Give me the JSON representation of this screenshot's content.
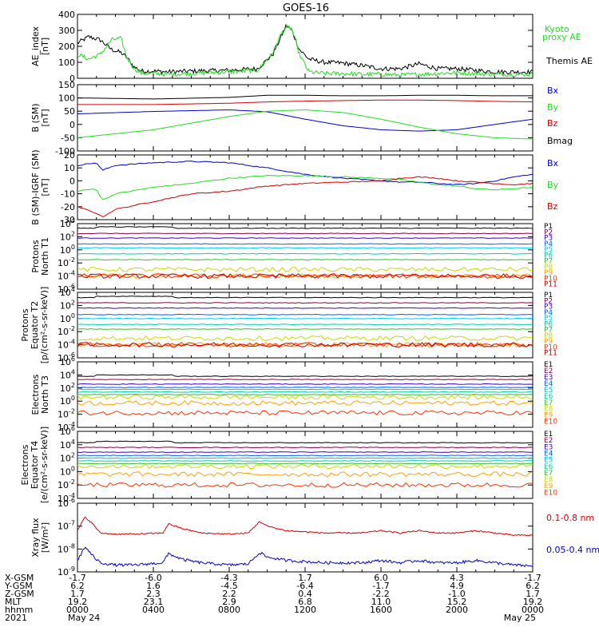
{
  "title": "GOES-16",
  "colors": {
    "black": "#000000",
    "red": "#d00000",
    "green": "#22dd22",
    "blue": "#0000cc",
    "chan": [
      "#000000",
      "#8b004b",
      "#3a00c8",
      "#0060ff",
      "#00c8ff",
      "#00d0a0",
      "#30c030",
      "#c8d800",
      "#ffa000",
      "#ff3000",
      "#c80000"
    ],
    "echan": [
      "#000000",
      "#8b004b",
      "#3a00c8",
      "#0060ff",
      "#00b8f0",
      "#00d0a0",
      "#30c030",
      "#c8d800",
      "#ffa000",
      "#ff3000",
      "#c00000"
    ]
  },
  "chart_data": [
    {
      "type": "line",
      "name": "ae",
      "ylabel": [
        "AE_index",
        "[nT]"
      ],
      "ylim": [
        0,
        400
      ],
      "yticks": [
        "0",
        "100",
        "200",
        "300",
        "400"
      ],
      "x_hours": [
        0,
        24
      ],
      "series": [
        {
          "name": "Themis AE",
          "color": "#000000",
          "x": [
            0,
            0.6,
            1.2,
            1.8,
            2.3,
            2.6,
            3.0,
            3.4,
            4.0,
            4.8,
            6,
            8,
            9.5,
            10.3,
            10.7,
            11.0,
            11.3,
            11.7,
            12.2,
            13,
            14,
            15,
            16,
            17,
            18,
            19,
            20,
            21,
            22,
            23,
            24
          ],
          "y": [
            220,
            260,
            240,
            180,
            160,
            130,
            70,
            45,
            45,
            40,
            45,
            50,
            60,
            150,
            250,
            330,
            300,
            180,
            120,
            100,
            95,
            80,
            60,
            60,
            90,
            60,
            60,
            50,
            40,
            40,
            40
          ]
        },
        {
          "name": "Kyoto proxy AE",
          "color": "#22dd22",
          "x": [
            0,
            0.6,
            1.2,
            1.8,
            2.3,
            2.6,
            3.0,
            3.4,
            4.0,
            4.8,
            6,
            8,
            9.5,
            10.3,
            10.7,
            11.0,
            11.3,
            11.7,
            12.2,
            13,
            14,
            15,
            16,
            17,
            18,
            19,
            20,
            21,
            22,
            23,
            24
          ],
          "y": [
            150,
            120,
            150,
            240,
            250,
            130,
            60,
            30,
            30,
            25,
            30,
            40,
            50,
            160,
            270,
            320,
            310,
            150,
            40,
            30,
            30,
            25,
            25,
            20,
            25,
            30,
            35,
            30,
            25,
            25,
            25
          ]
        }
      ],
      "legend": [
        "Kyoto",
        "proxy AE",
        "Themis AE"
      ]
    },
    {
      "type": "line",
      "name": "bsm",
      "ylabel": [
        "B (SM)",
        "[nT]"
      ],
      "ylim": [
        -100,
        150
      ],
      "yticks": [
        "-100",
        "-50",
        "0",
        "50",
        "100",
        "150"
      ],
      "series": [
        {
          "name": "Bx",
          "color": "#0000cc",
          "x": [
            0,
            4,
            8,
            10,
            12,
            14,
            16,
            18,
            20,
            22,
            24
          ],
          "y": [
            40,
            49,
            55,
            48,
            20,
            -5,
            -20,
            -25,
            -20,
            0,
            20
          ]
        },
        {
          "name": "By",
          "color": "#22dd22",
          "x": [
            0,
            4,
            8,
            10,
            12,
            14,
            16,
            18,
            20,
            22,
            24
          ],
          "y": [
            -50,
            -20,
            30,
            50,
            55,
            45,
            20,
            -10,
            -35,
            -50,
            -55
          ]
        },
        {
          "name": "Bz",
          "color": "#d00000",
          "x": [
            0,
            4,
            8,
            10,
            12,
            14,
            16,
            18,
            20,
            22,
            24
          ],
          "y": [
            75,
            75,
            80,
            85,
            88,
            90,
            92,
            92,
            90,
            87,
            85
          ]
        },
        {
          "name": "Bmag",
          "color": "#000000",
          "x": [
            0,
            4,
            8,
            10,
            12,
            14,
            16,
            18,
            20,
            22,
            24
          ],
          "y": [
            100,
            96,
            102,
            110,
            110,
            108,
            108,
            110,
            110,
            108,
            108
          ]
        }
      ]
    },
    {
      "type": "line",
      "name": "bigrf",
      "ylabel": [
        "B (SM)-IGRF (SM)",
        "[nT]"
      ],
      "ylim": [
        -30,
        20
      ],
      "yticks": [
        "-30",
        "-20",
        "-10",
        "0",
        "10",
        "20"
      ],
      "series": [
        {
          "name": "Bx",
          "color": "#0000cc",
          "x": [
            0,
            1,
            1.3,
            2,
            4,
            6,
            8,
            10,
            12,
            14,
            16,
            17,
            18,
            19,
            20,
            21,
            22,
            23,
            24
          ],
          "y": [
            12,
            14,
            8,
            12,
            14,
            15,
            14,
            10,
            5,
            2,
            0,
            -1,
            -1,
            -2,
            -3,
            -2,
            0,
            3,
            5
          ]
        },
        {
          "name": "By",
          "color": "#22dd22",
          "x": [
            0,
            1,
            1.3,
            2,
            4,
            6,
            8,
            10,
            12,
            14,
            16,
            17,
            18,
            19,
            20,
            21,
            22,
            23,
            24
          ],
          "y": [
            -8,
            -6,
            -15,
            -10,
            -5,
            -2,
            2,
            4,
            4,
            3,
            2,
            1,
            -1,
            -3,
            -4,
            -6,
            -7,
            -6,
            -5
          ]
        },
        {
          "name": "Bz",
          "color": "#d00000",
          "x": [
            0,
            1,
            1.3,
            2,
            4,
            6,
            8,
            10,
            12,
            14,
            16,
            17,
            18,
            19,
            20,
            21,
            22,
            23,
            24
          ],
          "y": [
            -20,
            -25,
            -28,
            -22,
            -16,
            -10,
            -8,
            -4,
            -2,
            -1,
            0,
            2,
            3,
            2,
            0,
            -1,
            -2,
            -3,
            -2
          ]
        }
      ]
    },
    {
      "type": "line",
      "name": "p_north",
      "ylabel": [
        "Protons",
        "North T1"
      ],
      "log": true,
      "ylim_exp": [
        -6,
        4
      ],
      "yticks_exp": [
        4,
        2,
        0,
        -2,
        -4,
        -6
      ],
      "channels": [
        "P1",
        "P2",
        "P3",
        "P4",
        "P5",
        "P6",
        "P7",
        "P8",
        "P9",
        "P10",
        "P11"
      ],
      "levels_exp": [
        3.3,
        2.5,
        1.8,
        0.9,
        0.3,
        -0.6,
        -1.5,
        -3.0,
        -4.0,
        -4.0,
        -4.0
      ]
    },
    {
      "type": "line",
      "name": "p_equator",
      "ylabel": [
        "Protons",
        "Equator T2",
        "[p/(cm²-s-sr-keV)]"
      ],
      "log": true,
      "ylim_exp": [
        -6,
        4
      ],
      "yticks_exp": [
        4,
        2,
        0,
        -2,
        -4,
        -6
      ],
      "channels": [
        "P1",
        "P2",
        "P3",
        "P4",
        "P5",
        "P6",
        "P7",
        "P8",
        "P9",
        "P10",
        "P11"
      ],
      "levels_exp": [
        3.2,
        2.4,
        1.6,
        0.6,
        0.0,
        -0.9,
        -1.6,
        -3.0,
        -4.0,
        -4.0,
        -4.0
      ]
    },
    {
      "type": "line",
      "name": "e_north",
      "ylabel": [
        "Electrons",
        "North T3"
      ],
      "log": true,
      "ylim_exp": [
        -4,
        6
      ],
      "yticks_exp": [
        6,
        4,
        2,
        0,
        -2,
        -4
      ],
      "channels": [
        "E1",
        "E2",
        "E3",
        "E4",
        "E5",
        "E6",
        "E7",
        "E8",
        "E9",
        "E10"
      ],
      "levels_exp": [
        3.8,
        3.3,
        2.6,
        2.1,
        1.8,
        1.4,
        1.0,
        0.6,
        -0.3,
        -1.8
      ]
    },
    {
      "type": "line",
      "name": "e_equator",
      "ylabel": [
        "Electrons",
        "Equator T4",
        "[e/(cm²-s-sr-keV)]"
      ],
      "log": true,
      "ylim_exp": [
        -4,
        6
      ],
      "yticks_exp": [
        6,
        4,
        2,
        0,
        -2,
        -4
      ],
      "channels": [
        "E1",
        "E2",
        "E3",
        "E4",
        "E5",
        "E6",
        "E7",
        "E8",
        "E9",
        "E10"
      ],
      "levels_exp": [
        4.3,
        3.6,
        2.9,
        2.4,
        2.0,
        1.6,
        1.2,
        0.8,
        -0.4,
        -2.0
      ]
    },
    {
      "type": "line",
      "name": "xray",
      "ylabel": [
        "Xray flux",
        "[W/m²]"
      ],
      "log": true,
      "ylim_exp": [
        -9,
        -6
      ],
      "yticks_exp": [
        -6,
        -7,
        -8,
        -9
      ],
      "series": [
        {
          "name": "0.1-0.8 nm",
          "color": "#d00000",
          "x": [
            0,
            0.4,
            0.8,
            1.2,
            2,
            3,
            4.5,
            4.8,
            5.5,
            6.5,
            8,
            9,
            9.6,
            10,
            11,
            13,
            15,
            16,
            17,
            18,
            19,
            20,
            21,
            22,
            23,
            24
          ],
          "y_exp": [
            -7.2,
            -6.6,
            -6.9,
            -7.3,
            -7.35,
            -7.35,
            -7.3,
            -6.9,
            -7.1,
            -7.3,
            -7.35,
            -7.3,
            -6.8,
            -7.0,
            -7.2,
            -7.3,
            -7.3,
            -7.2,
            -7.3,
            -7.2,
            -7.3,
            -7.3,
            -7.2,
            -7.3,
            -7.4,
            -7.4
          ]
        },
        {
          "name": "0.05-0.4 nm",
          "color": "#0000cc",
          "x": [
            0,
            0.4,
            0.8,
            1.2,
            2,
            3,
            4.5,
            4.8,
            5.5,
            6.5,
            8,
            9,
            9.6,
            10,
            11,
            13,
            15,
            16,
            17,
            18,
            19,
            20,
            21,
            22,
            23,
            24
          ],
          "y_exp": [
            -8.5,
            -7.9,
            -8.3,
            -8.6,
            -8.7,
            -8.7,
            -8.6,
            -8.2,
            -8.45,
            -8.6,
            -8.7,
            -8.65,
            -8.15,
            -8.35,
            -8.5,
            -8.6,
            -8.6,
            -8.5,
            -8.6,
            -8.5,
            -8.6,
            -8.6,
            -8.5,
            -8.6,
            -8.7,
            -8.75
          ]
        }
      ],
      "legend": [
        "0.1-0.8 nm",
        "0.05-0.4 nm"
      ]
    }
  ],
  "orbit": {
    "labels": [
      "X-GSM",
      "Y-GSM",
      "Z-GSM",
      "MLT",
      "hhmm",
      "2021"
    ],
    "columns": [
      [
        "-1.7",
        "6.2",
        "1.7",
        "19.2",
        "0000",
        "May 24"
      ],
      [
        "-6.0",
        "1.6",
        "2.3",
        "23.1",
        "0400",
        ""
      ],
      [
        "-4.3",
        "-4.5",
        "2.2",
        "2.9",
        "0800",
        ""
      ],
      [
        "1.7",
        "-6.4",
        "0.4",
        "6.8",
        "1200",
        ""
      ],
      [
        "6.0",
        "-1.7",
        "-2.2",
        "11.0",
        "1600",
        ""
      ],
      [
        "4.3",
        "4.9",
        "-1.0",
        "15.2",
        "2000",
        ""
      ],
      [
        "-1.7",
        "6.2",
        "1.7",
        "19.2",
        "0000",
        "May 25"
      ]
    ]
  }
}
